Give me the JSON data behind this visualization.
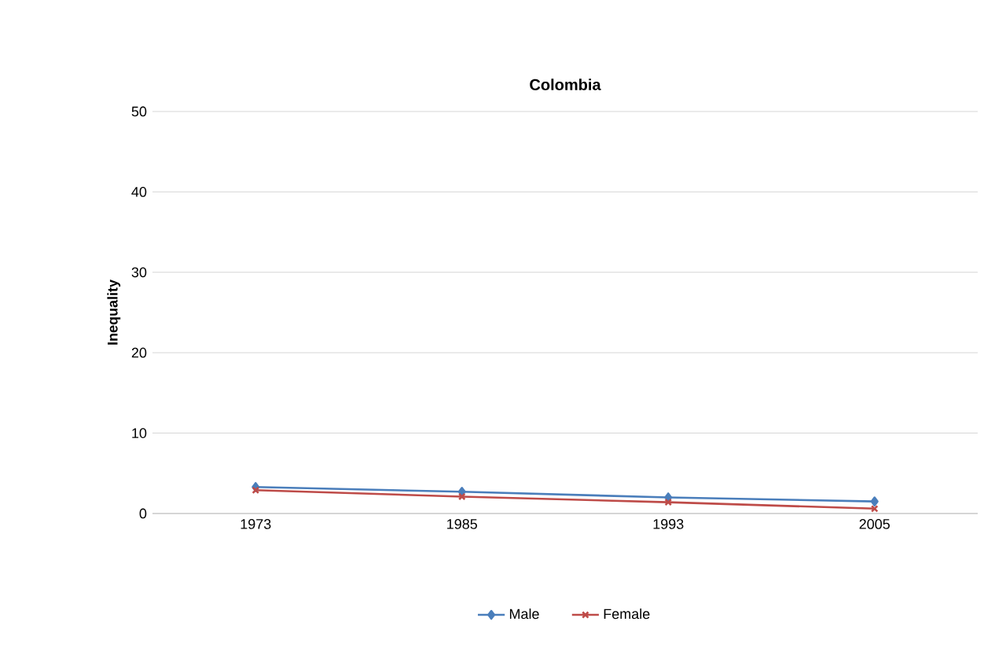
{
  "chart_data": {
    "type": "line",
    "title": "Colombia",
    "ylabel": "Inequality",
    "categories": [
      "1973",
      "1985",
      "1993",
      "2005"
    ],
    "series": [
      {
        "name": "Male",
        "color": "#4a7ebb",
        "marker": "diamond",
        "values": [
          3.3,
          2.7,
          2.0,
          1.5
        ]
      },
      {
        "name": "Female",
        "color": "#be4b48",
        "marker": "cross",
        "values": [
          2.9,
          2.1,
          1.4,
          0.6
        ]
      }
    ],
    "ylim": [
      0,
      50
    ],
    "yticks": [
      0,
      10,
      20,
      30,
      40,
      50
    ],
    "grid": "y",
    "legend": "bottom"
  }
}
